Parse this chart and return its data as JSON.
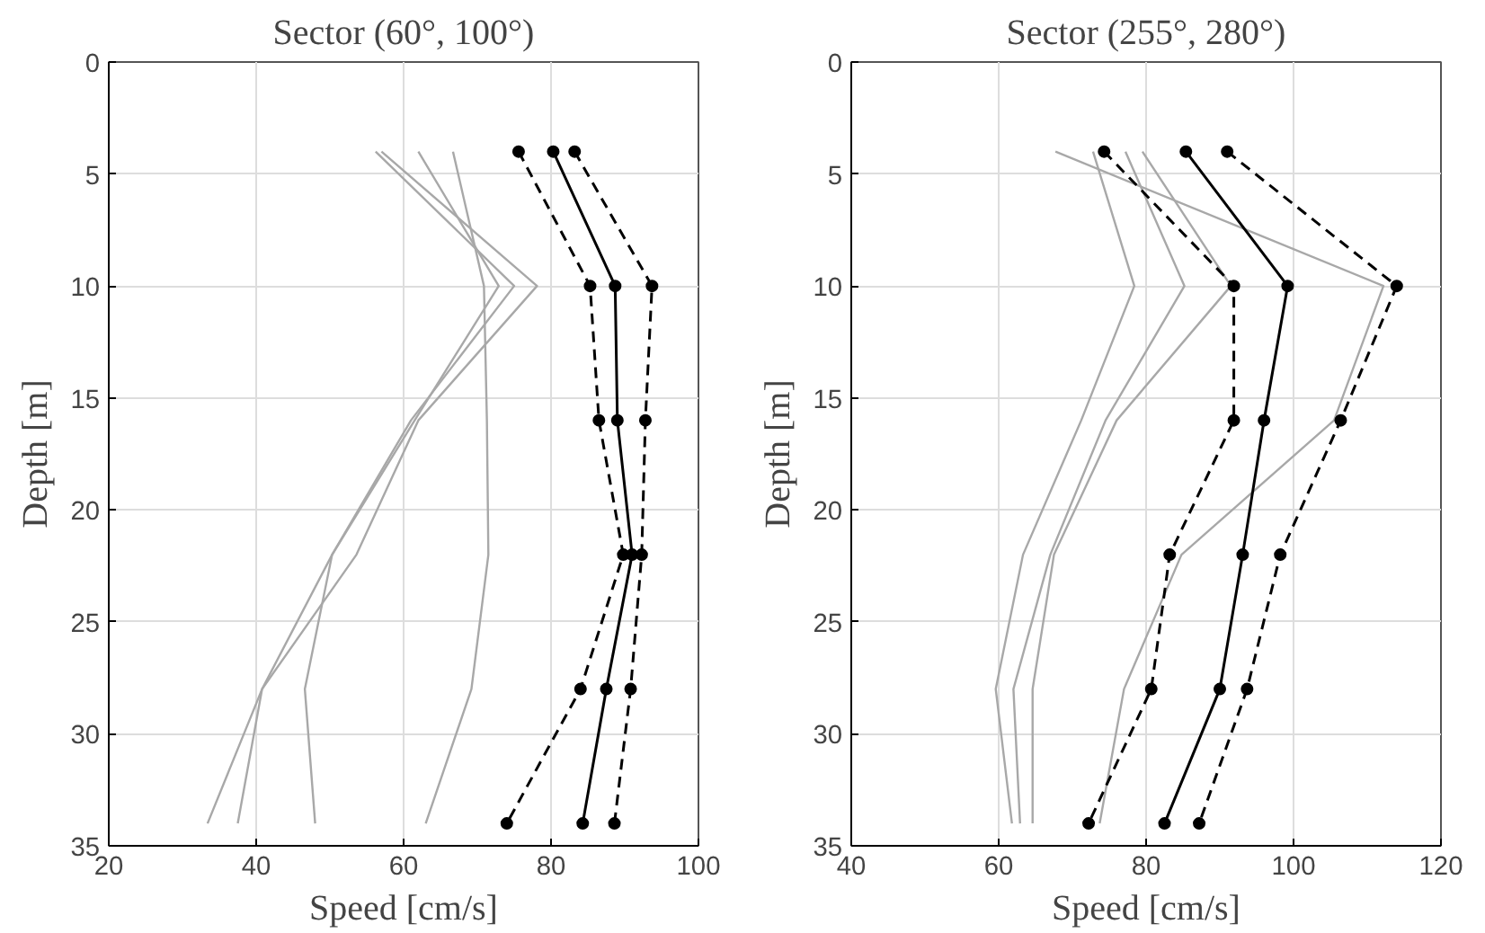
{
  "chart_data": [
    {
      "type": "line",
      "title": "Sector (60°, 100°)",
      "xlabel": "Speed [cm/s]",
      "ylabel": "Depth [m]",
      "xlim": [
        20,
        100
      ],
      "xticks": [
        20,
        40,
        60,
        80,
        100
      ],
      "ylim": [
        35,
        0
      ],
      "yticks": [
        0,
        5,
        10,
        15,
        20,
        25,
        30,
        35
      ],
      "grid": true,
      "series": [
        {
          "color": "#a8a8a8",
          "x": [
            56.2,
            75,
            61,
            50.3,
            40.8,
            37.5
          ],
          "values": [
            4,
            10,
            16,
            22,
            28,
            34
          ],
          "marker": "none",
          "line_style": "solid"
        },
        {
          "color": "#a8a8a8",
          "x": [
            57,
            78.1,
            62,
            53.6,
            40.8,
            33.4
          ],
          "values": [
            4,
            10,
            16,
            22,
            28,
            34
          ],
          "marker": "none",
          "line_style": "solid"
        },
        {
          "color": "#a8a8a8",
          "x": [
            62,
            72.9,
            61.5,
            50.3,
            46.6,
            48
          ],
          "values": [
            4,
            10,
            16,
            22,
            28,
            34
          ],
          "marker": "none",
          "line_style": "solid"
        },
        {
          "color": "#a8a8a8",
          "x": [
            66.7,
            70.9,
            71.3,
            71.5,
            69.2,
            63
          ],
          "values": [
            4,
            10,
            16,
            22,
            28,
            34
          ],
          "marker": "none",
          "line_style": "solid"
        },
        {
          "color": "#000000",
          "x": [
            75.6,
            85.3,
            86.5,
            89.8,
            84,
            74
          ],
          "values": [
            4,
            10,
            16,
            22,
            28,
            34
          ],
          "marker": "circle",
          "line_style": "dashed"
        },
        {
          "color": "#000000",
          "x": [
            80.3,
            88.7,
            89,
            91,
            87.5,
            84.3
          ],
          "values": [
            4,
            10,
            16,
            22,
            28,
            34
          ],
          "marker": "circle",
          "line_style": "solid"
        },
        {
          "color": "#000000",
          "x": [
            83.2,
            93.7,
            92.8,
            92.3,
            90.8,
            88.6
          ],
          "values": [
            4,
            10,
            16,
            22,
            28,
            34
          ],
          "marker": "circle",
          "line_style": "dashed"
        }
      ]
    },
    {
      "type": "line",
      "title": "Sector (255°, 280°)",
      "xlabel": "Speed [cm/s]",
      "ylabel": "Depth [m]",
      "xlim": [
        40,
        120
      ],
      "xticks": [
        40,
        60,
        80,
        100,
        120
      ],
      "ylim": [
        35,
        0
      ],
      "yticks": [
        0,
        5,
        10,
        15,
        20,
        25,
        30,
        35
      ],
      "grid": true,
      "series": [
        {
          "color": "#a8a8a8",
          "x": [
            67.7,
            112.2,
            105.5,
            84.8,
            77,
            73.7
          ],
          "values": [
            4,
            10,
            16,
            22,
            28,
            34
          ],
          "marker": "none",
          "line_style": "solid"
        },
        {
          "color": "#a8a8a8",
          "x": [
            72.8,
            78.4,
            71.2,
            63.3,
            59.6,
            61.8
          ],
          "values": [
            4,
            10,
            16,
            22,
            28,
            34
          ],
          "marker": "none",
          "line_style": "solid"
        },
        {
          "color": "#a8a8a8",
          "x": [
            77.2,
            85.2,
            74.5,
            67,
            62,
            62.9
          ],
          "values": [
            4,
            10,
            16,
            22,
            28,
            34
          ],
          "marker": "none",
          "line_style": "solid"
        },
        {
          "color": "#a8a8a8",
          "x": [
            79.5,
            91.5,
            76,
            67.5,
            64.6,
            64.6
          ],
          "values": [
            4,
            10,
            16,
            22,
            28,
            34
          ],
          "marker": "none",
          "line_style": "solid"
        },
        {
          "color": "#000000",
          "x": [
            74.3,
            91.9,
            91.9,
            83.2,
            80.7,
            72.2
          ],
          "values": [
            4,
            10,
            16,
            22,
            28,
            34
          ],
          "marker": "circle",
          "line_style": "dashed"
        },
        {
          "color": "#000000",
          "x": [
            85.4,
            99.2,
            96,
            93.1,
            90,
            82.5
          ],
          "values": [
            4,
            10,
            16,
            22,
            28,
            34
          ],
          "marker": "circle",
          "line_style": "solid"
        },
        {
          "color": "#000000",
          "x": [
            91,
            114,
            106.4,
            98.2,
            93.7,
            87.2
          ],
          "values": [
            4,
            10,
            16,
            22,
            28,
            34
          ],
          "marker": "circle",
          "line_style": "dashed"
        }
      ]
    }
  ]
}
